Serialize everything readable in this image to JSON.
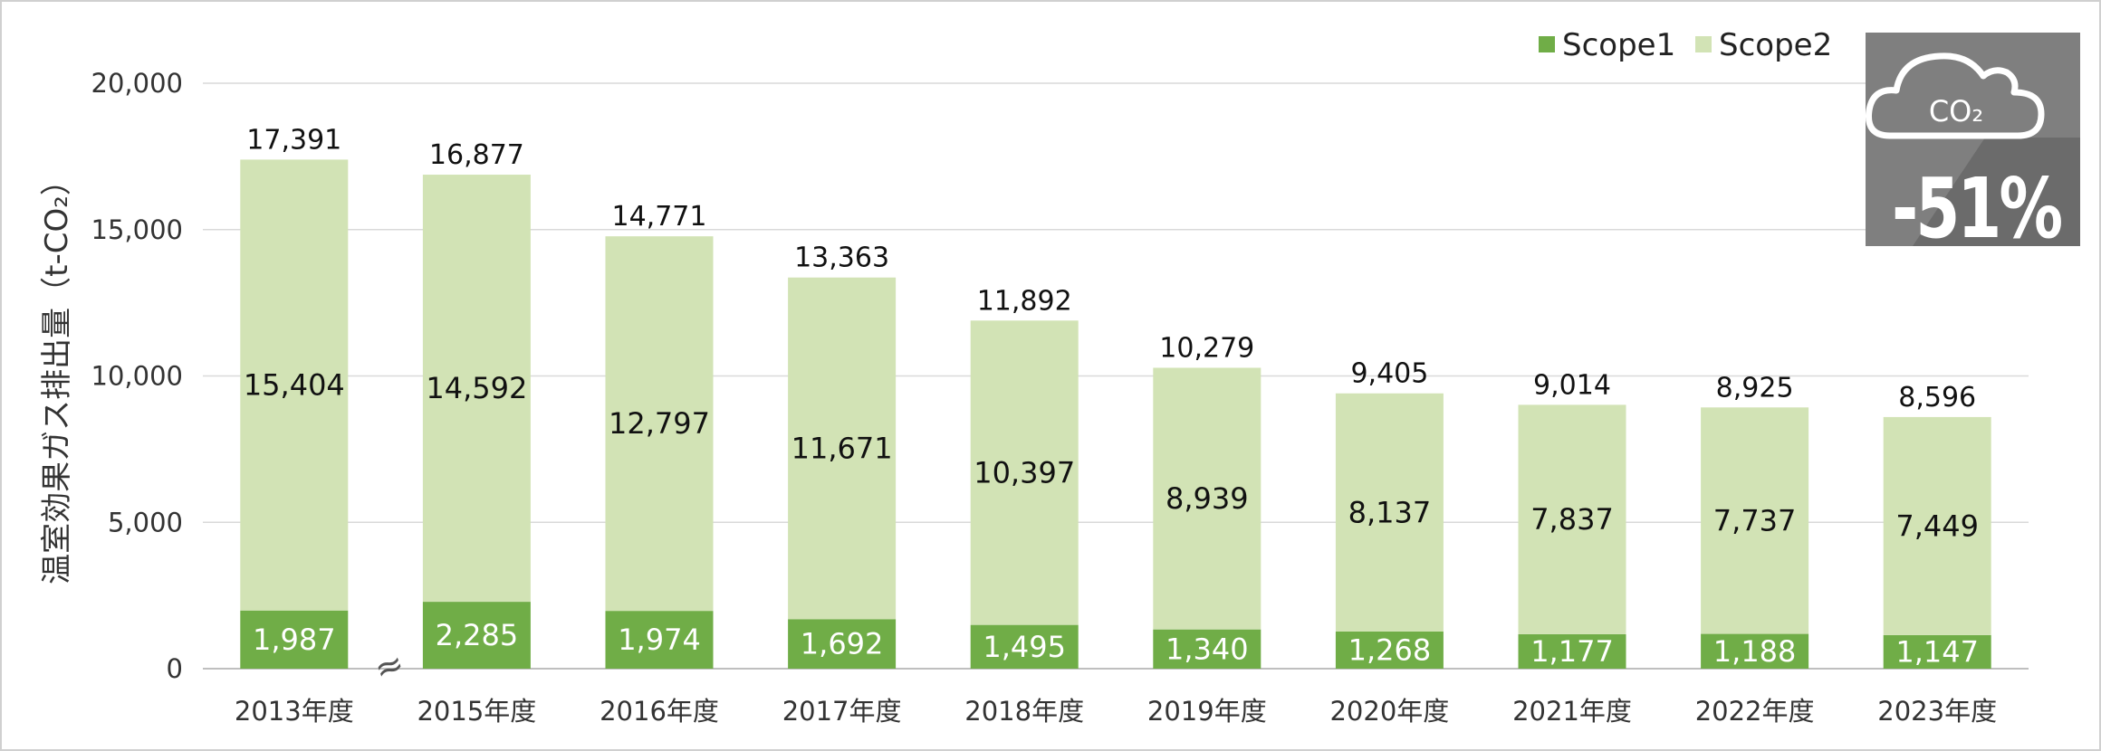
{
  "chart_data": {
    "type": "bar",
    "stacked": true,
    "title": "",
    "xlabel": "",
    "ylabel": "温室効果ガス排出量（t-CO₂）",
    "ylim": [
      0,
      20000
    ],
    "yticks": [
      0,
      5000,
      10000,
      15000,
      20000
    ],
    "ytick_labels": [
      "0",
      "5,000",
      "10,000",
      "15,000",
      "20,000"
    ],
    "grid": true,
    "legend_position": "top-right",
    "categories": [
      "2013年度",
      "2015年度",
      "2016年度",
      "2017年度",
      "2018年度",
      "2019年度",
      "2020年度",
      "2021年度",
      "2022年度",
      "2023年度"
    ],
    "series": [
      {
        "name": "Scope1",
        "color": "#70ad47",
        "values": [
          1987,
          2285,
          1974,
          1692,
          1495,
          1340,
          1268,
          1177,
          1188,
          1147
        ],
        "labels": [
          "1,987",
          "2,285",
          "1,974",
          "1,692",
          "1,495",
          "1,340",
          "1,268",
          "1,177",
          "1,188",
          "1,147"
        ]
      },
      {
        "name": "Scope2",
        "color": "#d2e3b5",
        "values": [
          15404,
          14592,
          12797,
          11671,
          10397,
          8939,
          8137,
          7837,
          7737,
          7449
        ],
        "labels": [
          "15,404",
          "14,592",
          "12,797",
          "11,671",
          "10,397",
          "8,939",
          "8,137",
          "7,837",
          "7,737",
          "7,449"
        ]
      }
    ],
    "totals": [
      17391,
      16877,
      14771,
      13363,
      11892,
      10279,
      9405,
      9014,
      8925,
      8596
    ],
    "total_labels": [
      "17,391",
      "16,877",
      "14,771",
      "13,363",
      "11,892",
      "10,279",
      "9,405",
      "9,014",
      "8,925",
      "8,596"
    ],
    "axis_break_symbol": "≈",
    "axis_break_after": "2013年度"
  },
  "badge": {
    "icon": "co2-cloud-icon",
    "icon_text": "CO₂",
    "value": "-51%",
    "bg_color": "#7f7f7f",
    "shadow_color": "#6b6b6b"
  }
}
